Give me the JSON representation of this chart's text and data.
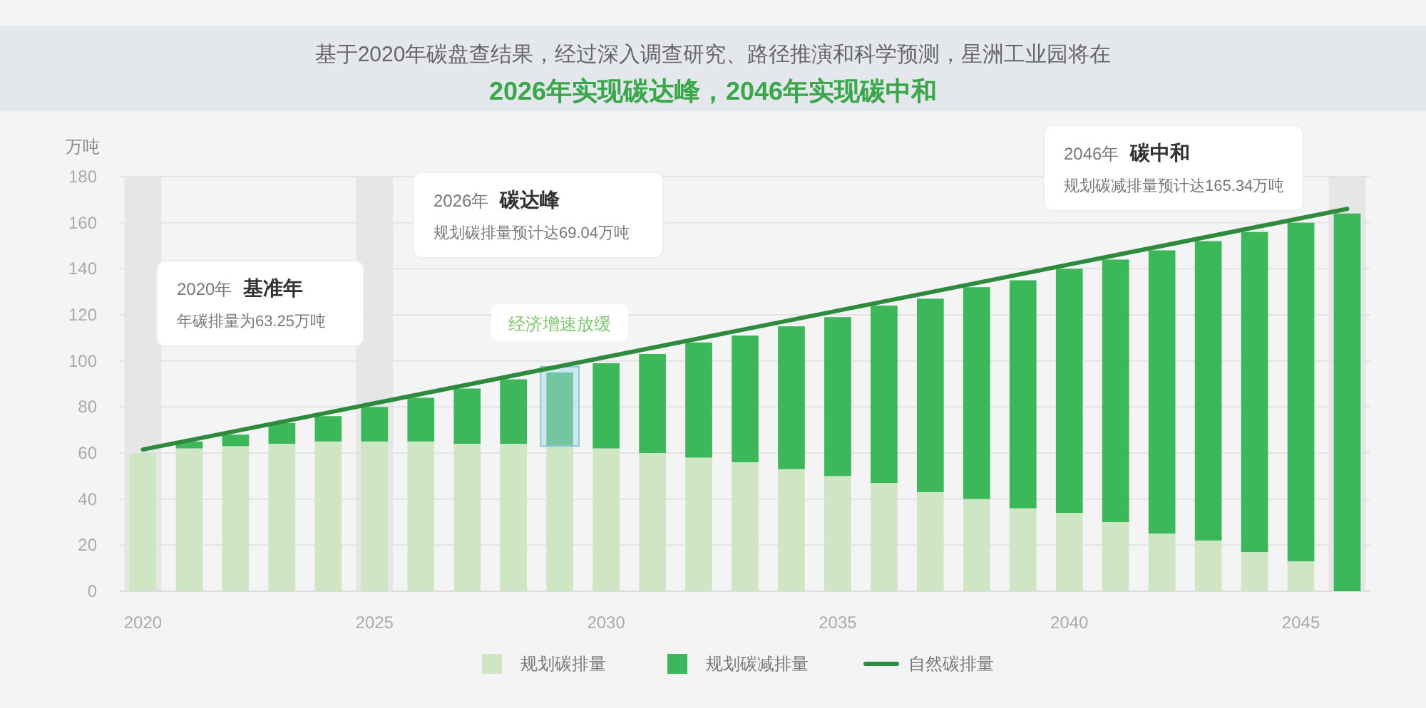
{
  "chart_data": {
    "type": "bar",
    "stacked": true,
    "title": "基于2020年碳盘查结果，经过深入调查研究、路径推演和科学预测，星洲工业园将在",
    "subtitle": "2026年实现碳达峰，2046年实现碳中和",
    "ylabel": "万吨",
    "x": [
      2020,
      2021,
      2022,
      2023,
      2024,
      2025,
      2026,
      2027,
      2028,
      2029,
      2030,
      2031,
      2032,
      2033,
      2034,
      2035,
      2036,
      2037,
      2038,
      2039,
      2040,
      2041,
      2042,
      2043,
      2044,
      2045,
      2046
    ],
    "xlim": [
      2019.5,
      2046.5
    ],
    "xticks": [
      2020,
      2025,
      2030,
      2035,
      2040,
      2045
    ],
    "ylim": [
      0,
      180
    ],
    "yticks": [
      0,
      20,
      40,
      60,
      80,
      100,
      120,
      140,
      160,
      180
    ],
    "grid": "y",
    "legend": "bottom",
    "series": [
      {
        "name": "规划碳排量",
        "color": "#cfe6c5",
        "values": [
          60,
          62,
          63,
          64,
          65,
          65,
          65,
          64,
          64,
          63,
          62,
          60,
          58,
          56,
          53,
          50,
          47,
          43,
          40,
          36,
          34,
          30,
          25,
          22,
          17,
          13,
          0
        ]
      },
      {
        "name": "规划碳减排量",
        "color": "#3cb75a",
        "values": [
          0,
          3,
          5,
          9,
          11,
          15,
          19,
          24,
          28,
          32,
          37,
          43,
          50,
          55,
          62,
          69,
          77,
          84,
          92,
          99,
          106,
          114,
          123,
          130,
          139,
          147,
          164
        ]
      },
      {
        "name": "自然碳排量",
        "type": "line",
        "color": "#2e8b3e",
        "x": [
          2020,
          2046
        ],
        "values": [
          61.5,
          166
        ]
      }
    ],
    "bands": [
      {
        "axis": "x",
        "from": 2019.6,
        "to": 2020.4,
        "color": "#e6e6e6"
      },
      {
        "axis": "x",
        "from": 2024.6,
        "to": 2025.4,
        "color": "#e6e6e6"
      },
      {
        "axis": "x",
        "from": 2045.6,
        "to": 2046.4,
        "color": "#e6e6e6"
      }
    ],
    "annotations": [
      "2020年",
      "基准年",
      "年碳排量为63.25万吨",
      "2026年",
      "碳达峰",
      "规划碳排量预计达69.04万吨",
      {
        "text": "经济增速放缓",
        "x": 2029,
        "y": 95
      },
      "2046年",
      "碳中和",
      "规划碳减排量预计达165.34万吨"
    ]
  }
}
